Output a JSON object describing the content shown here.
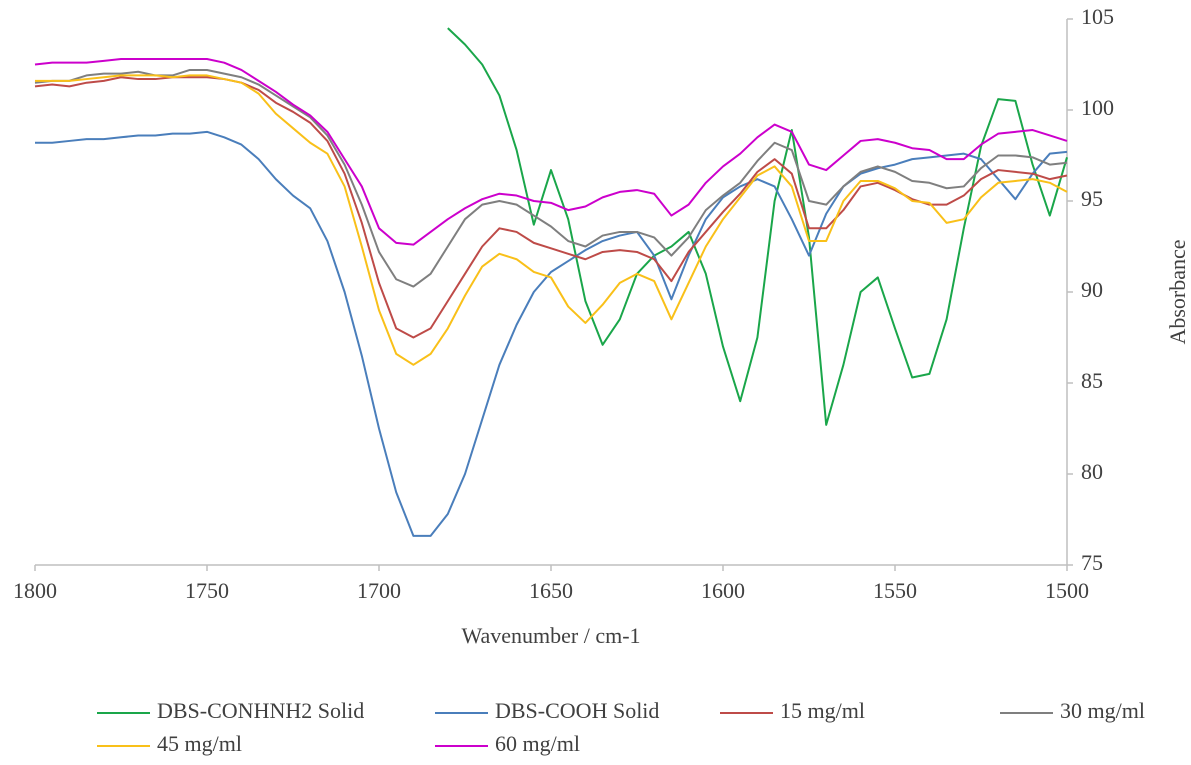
{
  "chart_data": {
    "type": "line",
    "x_label": "Wavenumber / cm-1",
    "y_label": "Absorbance",
    "xlim": [
      1800,
      1500
    ],
    "xticks": [
      1800,
      1750,
      1700,
      1650,
      1600,
      1550,
      1500
    ],
    "ylim": [
      75,
      105
    ],
    "yticks": [
      75,
      80,
      85,
      90,
      95,
      100,
      105
    ],
    "x": [
      1800,
      1795,
      1790,
      1785,
      1780,
      1775,
      1770,
      1765,
      1760,
      1755,
      1750,
      1745,
      1740,
      1735,
      1730,
      1725,
      1720,
      1715,
      1710,
      1705,
      1700,
      1695,
      1690,
      1685,
      1680,
      1675,
      1670,
      1665,
      1660,
      1655,
      1650,
      1645,
      1640,
      1635,
      1630,
      1625,
      1620,
      1615,
      1610,
      1605,
      1600,
      1595,
      1590,
      1585,
      1580,
      1575,
      1570,
      1565,
      1560,
      1555,
      1550,
      1545,
      1540,
      1535,
      1530,
      1525,
      1520,
      1515,
      1510,
      1505,
      1500
    ],
    "series": [
      {
        "name": "DBS-CONHNH2 Solid",
        "color": "#1aa64a",
        "values": [
          null,
          null,
          null,
          null,
          null,
          null,
          null,
          null,
          null,
          null,
          null,
          null,
          null,
          null,
          null,
          null,
          null,
          null,
          null,
          null,
          null,
          null,
          null,
          null,
          104.5,
          103.6,
          102.5,
          100.8,
          97.8,
          93.7,
          96.7,
          94,
          89.5,
          87.1,
          88.5,
          91,
          92,
          92.5,
          93.3,
          91,
          87,
          84,
          87.5,
          95,
          98.9,
          93,
          82.7,
          86,
          90,
          90.8,
          88,
          85.3,
          85.5,
          88.5,
          93.5,
          98,
          100.6,
          100.5,
          97,
          94.2,
          97.4
        ]
      },
      {
        "name": "DBS-COOH Solid",
        "color": "#4a7ebb",
        "values": [
          98.2,
          98.2,
          98.3,
          98.4,
          98.4,
          98.5,
          98.6,
          98.6,
          98.7,
          98.7,
          98.8,
          98.5,
          98.1,
          97.3,
          96.2,
          95.3,
          94.6,
          92.8,
          90,
          86.5,
          82.5,
          79,
          76.6,
          76.6,
          77.8,
          80,
          83,
          86,
          88.2,
          90,
          91.1,
          91.7,
          92.3,
          92.8,
          93.1,
          93.3,
          92,
          89.6,
          92,
          94,
          95.2,
          95.8,
          96.2,
          95.8,
          94,
          92,
          94.3,
          95.8,
          96.5,
          96.8,
          97,
          97.3,
          97.4,
          97.5,
          97.6,
          97.3,
          96.2,
          95.1,
          96.5,
          97.6,
          97.7
        ]
      },
      {
        "name": "15 mg/ml",
        "color": "#be4b48",
        "values": [
          101.3,
          101.4,
          101.3,
          101.5,
          101.6,
          101.8,
          101.7,
          101.7,
          101.8,
          101.8,
          101.8,
          101.7,
          101.5,
          101.1,
          100.4,
          99.9,
          99.3,
          98.3,
          96.5,
          93.8,
          90.5,
          88,
          87.5,
          88,
          89.5,
          91,
          92.5,
          93.5,
          93.3,
          92.7,
          92.4,
          92.1,
          91.8,
          92.2,
          92.3,
          92.2,
          91.8,
          90.6,
          92.2,
          93.3,
          94.4,
          95.4,
          96.6,
          97.3,
          96.5,
          93.5,
          93.5,
          94.5,
          95.8,
          96,
          95.6,
          95.1,
          94.8,
          94.8,
          95.3,
          96.2,
          96.7,
          96.6,
          96.5,
          96.2,
          96.4
        ]
      },
      {
        "name": "30 mg/ml",
        "color": "#7f7f7f",
        "values": [
          101.5,
          101.6,
          101.6,
          101.9,
          102,
          102,
          102.1,
          101.9,
          101.9,
          102.2,
          102.2,
          102,
          101.8,
          101.4,
          100.8,
          100.2,
          99.6,
          98.6,
          97,
          94.8,
          92.2,
          90.7,
          90.3,
          91,
          92.5,
          94,
          94.8,
          95,
          94.8,
          94.2,
          93.6,
          92.8,
          92.5,
          93.1,
          93.3,
          93.3,
          93,
          92,
          93,
          94.5,
          95.3,
          96,
          97.2,
          98.2,
          97.8,
          95,
          94.8,
          95.8,
          96.6,
          96.9,
          96.6,
          96.1,
          96,
          95.7,
          95.8,
          96.8,
          97.5,
          97.5,
          97.4,
          97,
          97.1
        ]
      },
      {
        "name": "45 mg/ml",
        "color": "#f9c019",
        "values": [
          101.6,
          101.6,
          101.6,
          101.7,
          101.8,
          101.9,
          101.9,
          101.9,
          101.8,
          101.9,
          101.9,
          101.7,
          101.5,
          100.9,
          99.8,
          99,
          98.2,
          97.6,
          95.8,
          92.5,
          89,
          86.6,
          86,
          86.6,
          88,
          89.8,
          91.4,
          92.1,
          91.8,
          91.1,
          90.8,
          89.2,
          88.3,
          89.3,
          90.5,
          91,
          90.6,
          88.5,
          90.5,
          92.5,
          94,
          95.2,
          96.4,
          96.9,
          95.8,
          92.8,
          92.8,
          95,
          96.1,
          96.1,
          95.7,
          95,
          94.9,
          93.8,
          94,
          95.2,
          96,
          96.1,
          96.2,
          96,
          95.5
        ]
      },
      {
        "name": "60 mg/ml",
        "color": "#cc00cc",
        "values": [
          102.5,
          102.6,
          102.6,
          102.6,
          102.7,
          102.8,
          102.8,
          102.8,
          102.8,
          102.8,
          102.8,
          102.6,
          102.2,
          101.6,
          101,
          100.3,
          99.7,
          98.8,
          97.3,
          95.8,
          93.5,
          92.7,
          92.6,
          93.3,
          94,
          94.6,
          95.1,
          95.4,
          95.3,
          95,
          94.9,
          94.5,
          94.7,
          95.2,
          95.5,
          95.6,
          95.4,
          94.2,
          94.8,
          96,
          96.9,
          97.6,
          98.5,
          99.2,
          98.8,
          97,
          96.7,
          97.5,
          98.3,
          98.4,
          98.2,
          97.9,
          97.8,
          97.3,
          97.3,
          98.1,
          98.7,
          98.8,
          98.9,
          98.6,
          98.3
        ]
      }
    ]
  }
}
